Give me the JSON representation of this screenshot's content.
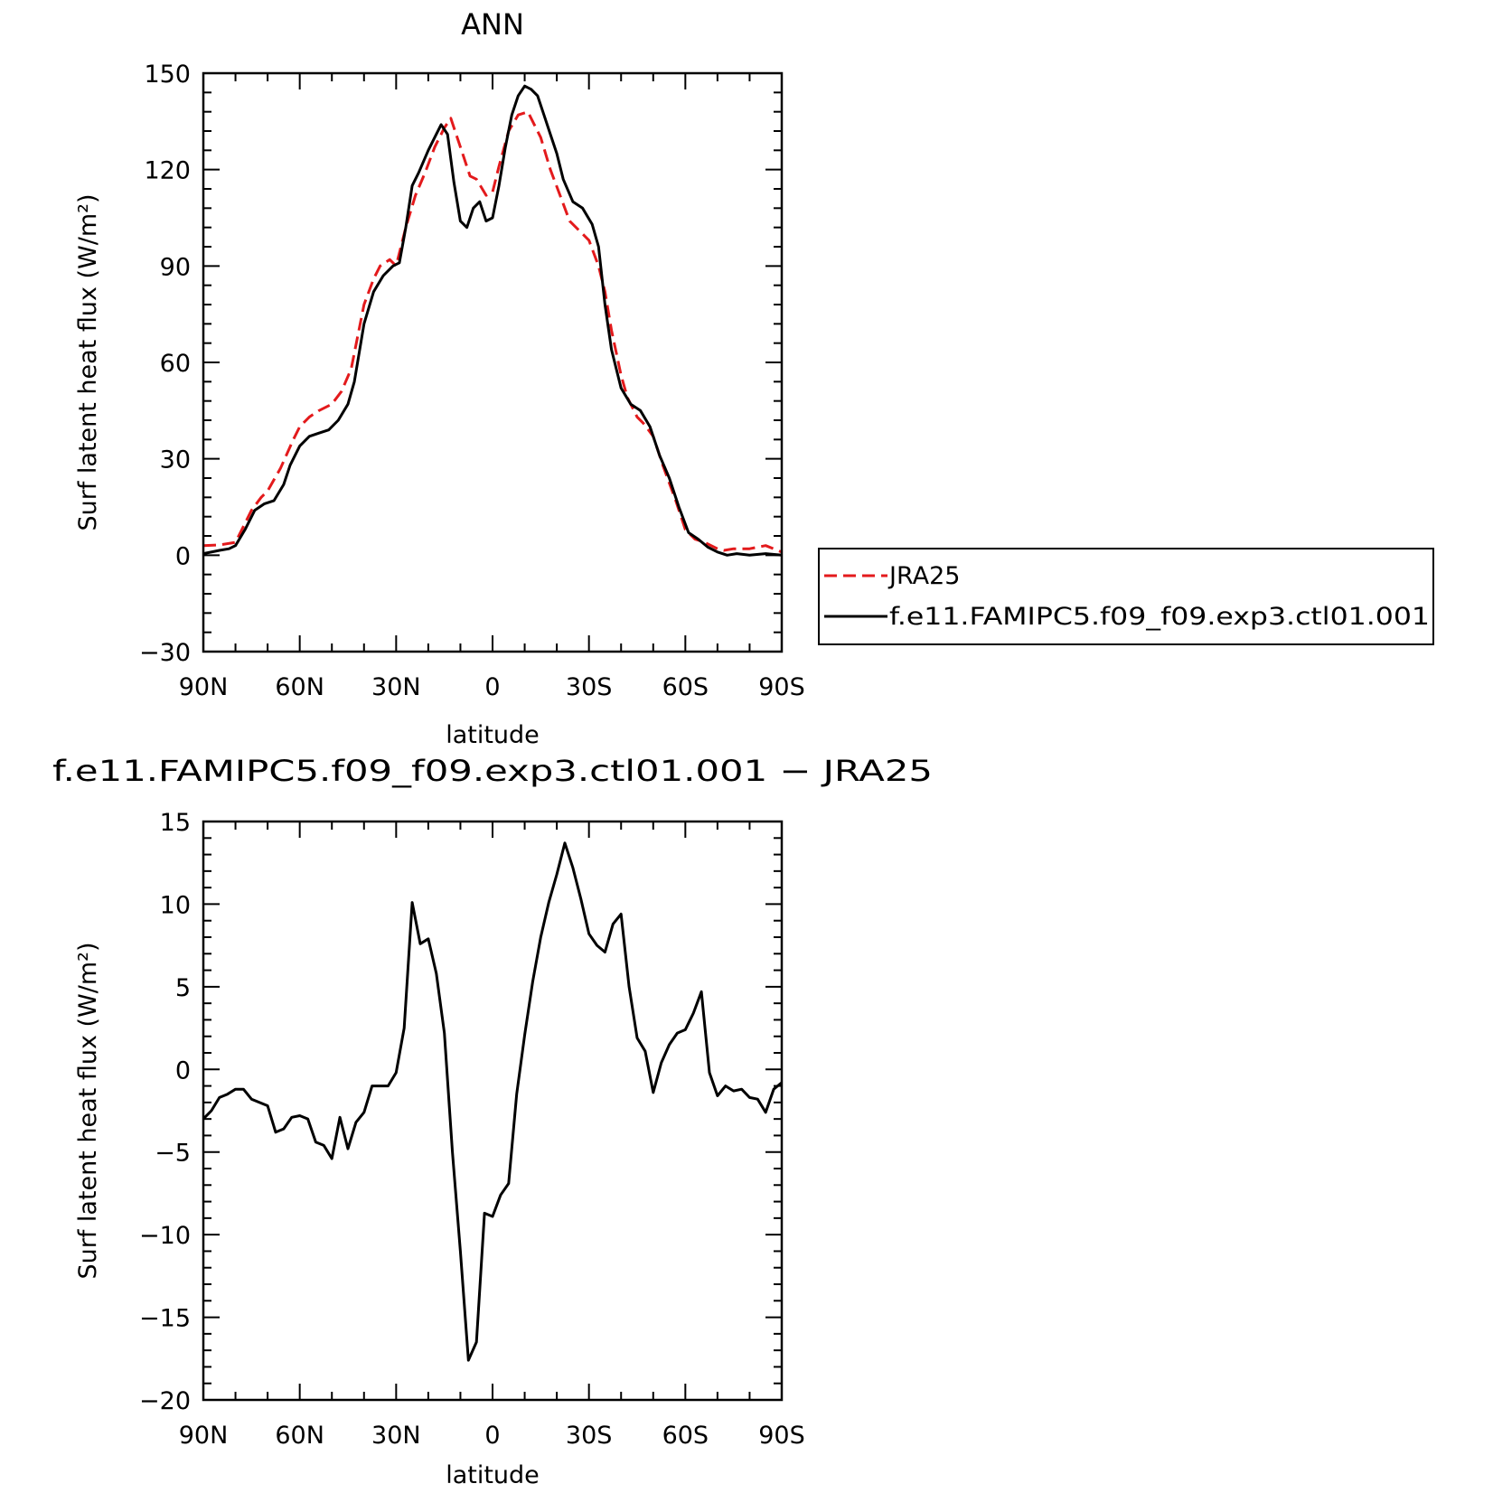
{
  "chart_data": [
    {
      "type": "line",
      "title": "ANN",
      "xlabel": "latitude",
      "ylabel": "Surf latent heat flux (W/m²)",
      "xlim": [
        90,
        -90
      ],
      "ylim": [
        -30,
        150
      ],
      "yticks": [
        -30,
        0,
        30,
        60,
        90,
        120,
        150
      ],
      "ytick_labels": [
        "−30",
        "0",
        "30",
        "60",
        "90",
        "120",
        "150"
      ],
      "xticks": [
        90,
        60,
        30,
        0,
        -30,
        -60,
        -90
      ],
      "xtick_labels": [
        "90N",
        "60N",
        "30N",
        "0",
        "30S",
        "60S",
        "90S"
      ],
      "legend_placement": "right",
      "series": [
        {
          "name": "JRA25",
          "color": "#e31a1c",
          "dash": true,
          "x": [
            90,
            85,
            80,
            78,
            75,
            72,
            70,
            66,
            62,
            60,
            57,
            54,
            50,
            47,
            44,
            40,
            37,
            35,
            32,
            30,
            27,
            24,
            21,
            18,
            15,
            13,
            11,
            9,
            7,
            5,
            2,
            0,
            -2,
            -5,
            -8,
            -11,
            -13,
            -15,
            -18,
            -21,
            -24,
            -27,
            -30,
            -33,
            -35,
            -37,
            -40,
            -42,
            -45,
            -47,
            -50,
            -53,
            -57,
            -60,
            -63,
            -66,
            -70,
            -72,
            -75,
            -80,
            -85,
            -90
          ],
          "y": [
            3,
            3.2,
            4,
            8,
            14,
            18,
            20,
            27,
            36,
            40,
            43,
            45,
            47,
            51,
            58,
            78,
            86,
            90,
            92,
            90,
            102,
            112,
            119,
            127,
            133,
            136,
            130,
            124,
            118,
            117,
            112,
            113,
            121,
            132,
            137,
            138,
            134,
            130,
            120,
            112,
            104,
            101,
            98,
            90,
            82,
            70,
            56,
            49,
            43,
            41,
            37,
            28,
            17,
            8,
            5,
            4,
            2,
            1.5,
            2,
            2,
            3,
            1
          ],
          "values": [
            3,
            3.2,
            4,
            8,
            14,
            18,
            20,
            27,
            36,
            40,
            43,
            45,
            47,
            51,
            58,
            78,
            86,
            90,
            92,
            90,
            102,
            112,
            119,
            127,
            133,
            136,
            130,
            124,
            118,
            117,
            112,
            113,
            121,
            132,
            137,
            138,
            134,
            130,
            120,
            112,
            104,
            101,
            98,
            90,
            82,
            70,
            56,
            49,
            43,
            41,
            37,
            28,
            17,
            8,
            5,
            4,
            2,
            1.5,
            2,
            2,
            3,
            1
          ]
        },
        {
          "name": "f.e11.FAMIPC5.f09_f09.exp3.ctl01.001",
          "color": "#000000",
          "dash": false,
          "x": [
            90,
            85,
            82,
            80,
            77,
            74,
            71,
            68,
            65,
            63,
            60,
            57,
            54,
            51,
            48,
            45,
            43,
            40,
            37,
            34,
            31,
            29,
            27,
            25,
            23,
            20,
            18,
            16,
            14,
            12,
            10,
            8,
            6,
            4,
            2,
            0,
            -2,
            -4,
            -6,
            -8,
            -10,
            -12,
            -14,
            -16,
            -18,
            -20,
            -22,
            -25,
            -28,
            -31,
            -33,
            -35,
            -37,
            -40,
            -43,
            -46,
            -49,
            -52,
            -55,
            -58,
            -61,
            -64,
            -67,
            -70,
            -73,
            -76,
            -80,
            -85,
            -90
          ],
          "y": [
            0.5,
            1.5,
            2,
            3,
            8,
            14,
            16,
            17,
            22,
            28,
            34,
            37,
            38,
            39,
            42,
            47,
            54,
            72,
            82,
            87,
            90,
            91,
            102,
            115,
            119,
            126,
            130,
            134,
            131,
            116,
            104,
            102,
            108,
            110,
            104,
            105,
            115,
            127,
            137,
            143,
            146,
            145,
            143,
            137,
            131,
            125,
            117,
            110,
            108,
            103,
            96,
            78,
            64,
            52,
            47,
            45,
            40,
            31,
            24,
            15,
            7,
            5,
            2.5,
            1,
            0,
            0.5,
            0,
            0.5,
            0
          ],
          "values": [
            0.5,
            1.5,
            2,
            3,
            8,
            14,
            16,
            17,
            22,
            28,
            34,
            37,
            38,
            39,
            42,
            47,
            54,
            72,
            82,
            87,
            90,
            91,
            102,
            115,
            119,
            126,
            130,
            134,
            131,
            116,
            104,
            102,
            108,
            110,
            104,
            105,
            115,
            127,
            137,
            143,
            146,
            145,
            143,
            137,
            131,
            125,
            117,
            110,
            108,
            103,
            96,
            78,
            64,
            52,
            47,
            45,
            40,
            31,
            24,
            15,
            7,
            5,
            2.5,
            1,
            0,
            0.5,
            0,
            0.5,
            0
          ]
        }
      ]
    },
    {
      "type": "line",
      "title": "f.e11.FAMIPC5.f09_f09.exp3.ctl01.001 − JRA25",
      "xlabel": "latitude",
      "ylabel": "Surf latent heat flux (W/m²)",
      "xlim": [
        90,
        -90
      ],
      "ylim": [
        -20,
        15
      ],
      "yticks": [
        -20,
        -15,
        -10,
        -5,
        0,
        5,
        10,
        15
      ],
      "ytick_labels": [
        "−20",
        "−15",
        "−10",
        "−5",
        "0",
        "5",
        "10",
        "15"
      ],
      "xticks": [
        90,
        60,
        30,
        0,
        -30,
        -60,
        -90
      ],
      "xtick_labels": [
        "90N",
        "60N",
        "30N",
        "0",
        "30S",
        "60S",
        "90S"
      ],
      "series": [
        {
          "color": "#000000",
          "x": [
            90,
            87.5,
            85,
            82.5,
            80,
            77.5,
            75,
            72.5,
            70,
            67.5,
            65,
            62.5,
            60,
            57.5,
            55,
            52.5,
            50,
            47.5,
            45,
            42.5,
            40,
            37.5,
            35,
            32.5,
            30,
            27.5,
            25,
            22.5,
            20,
            17.5,
            15,
            12.5,
            10,
            7.5,
            5,
            2.5,
            0,
            -2.5,
            -5,
            -7.5,
            -10,
            -12.5,
            -15,
            -17.5,
            -20,
            -22.5,
            -25,
            -27.5,
            -30,
            -32.5,
            -35,
            -37.5,
            -40,
            -42.5,
            -45,
            -47.5,
            -50,
            -52.5,
            -55,
            -57.5,
            -60,
            -62.5,
            -65,
            -67.5,
            -70,
            -72.5,
            -75,
            -77.5,
            -80,
            -82.5,
            -85,
            -87.5,
            -90
          ],
          "y": [
            -3,
            -2.5,
            -1.7,
            -1.5,
            -1.2,
            -1.2,
            -1.8,
            -2,
            -2.2,
            -3.8,
            -3.6,
            -2.9,
            -2.8,
            -3,
            -4.4,
            -4.6,
            -5.4,
            -2.9,
            -4.8,
            -3.2,
            -2.6,
            -1,
            -1,
            -1,
            -0.2,
            2.5,
            10.1,
            7.6,
            7.9,
            5.8,
            2.2,
            -5,
            -11,
            -17.6,
            -16.5,
            -8.7,
            -8.9,
            -7.6,
            -6.9,
            -1.5,
            2.1,
            5.3,
            8,
            10.1,
            11.8,
            13.7,
            12.2,
            10.3,
            8.2,
            7.5,
            7.1,
            8.8,
            9.4,
            5,
            1.9,
            1.1,
            -1.4,
            0.4,
            1.5,
            2.2,
            2.4,
            3.4,
            4.7,
            -0.2,
            -1.6,
            -1,
            -1.3,
            -1.2,
            -1.7,
            -1.8,
            -2.6,
            -1.2,
            -0.8
          ],
          "values": [
            -3,
            -2.5,
            -1.7,
            -1.5,
            -1.2,
            -1.2,
            -1.8,
            -2,
            -2.2,
            -3.8,
            -3.6,
            -2.9,
            -2.8,
            -3,
            -4.4,
            -4.6,
            -5.4,
            -2.9,
            -4.8,
            -3.2,
            -2.6,
            -1,
            -1,
            -1,
            -0.2,
            2.5,
            10.1,
            7.6,
            7.9,
            5.8,
            2.2,
            -5,
            -11,
            -17.6,
            -16.5,
            -8.7,
            -8.9,
            -7.6,
            -6.9,
            -1.5,
            2.1,
            5.3,
            8,
            10.1,
            11.8,
            13.7,
            12.2,
            10.3,
            8.2,
            7.5,
            7.1,
            8.8,
            9.4,
            5,
            1.9,
            1.1,
            -1.4,
            0.4,
            1.5,
            2.2,
            2.4,
            3.4,
            4.7,
            -0.2,
            -1.6,
            -1,
            -1.3,
            -1.2,
            -1.7,
            -1.8,
            -2.6,
            -1.2,
            -0.8
          ]
        }
      ]
    }
  ]
}
